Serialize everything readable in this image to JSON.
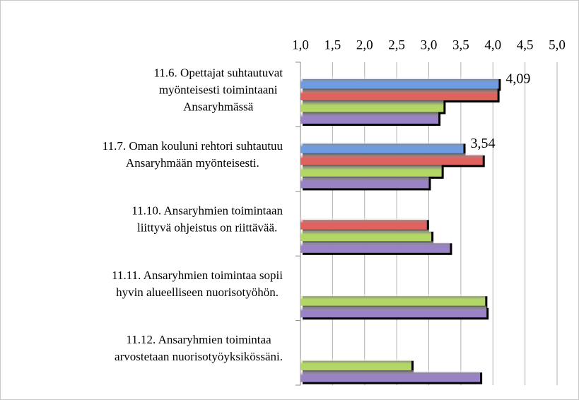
{
  "chart_data": {
    "type": "bar",
    "orientation": "horizontal",
    "categories": [
      [
        "11.6. Opettajat suhtautuvat",
        "myönteisesti toimintaani",
        "Ansaryhmässä"
      ],
      [
        "11.7. Oman kouluni rehtori suhtautuu",
        "Ansaryhmään myönteisesti."
      ],
      [
        "11.10. Ansaryhmien toimintaan",
        "liittyvä ohjeistus on riittävää."
      ],
      [
        "11.11. Ansaryhmien toimintaa sopii",
        "hyvin alueelliseen nuorisotyöhön."
      ],
      [
        "11.12. Ansaryhmien toimintaa",
        "arvostetaan nuorisotyöyksikössäni."
      ]
    ],
    "series": [
      {
        "color": "#6f9be0",
        "values": [
          4.09,
          3.54,
          null,
          null,
          null
        ],
        "value_labels": [
          "4,09",
          "3,54",
          null,
          null,
          null
        ]
      },
      {
        "color": "#e0625e",
        "values": [
          4.07,
          3.84,
          2.97,
          null,
          null
        ]
      },
      {
        "color": "#b3d764",
        "values": [
          3.23,
          3.2,
          3.04,
          3.88,
          2.73
        ]
      },
      {
        "color": "#9a82c6",
        "values": [
          3.15,
          3.0,
          3.33,
          3.9,
          3.8
        ]
      }
    ],
    "xlim": [
      1.0,
      5.0
    ],
    "xticks": [
      {
        "value": 1.0,
        "label": "1,0"
      },
      {
        "value": 1.5,
        "label": "1,5"
      },
      {
        "value": 2.0,
        "label": "2,0"
      },
      {
        "value": 2.5,
        "label": "2,5"
      },
      {
        "value": 3.0,
        "label": "3,0"
      },
      {
        "value": 3.5,
        "label": "3,5"
      },
      {
        "value": 4.0,
        "label": "4,0"
      },
      {
        "value": 4.5,
        "label": "4,5"
      },
      {
        "value": 5.0,
        "label": "5,0"
      }
    ],
    "grid": true
  }
}
